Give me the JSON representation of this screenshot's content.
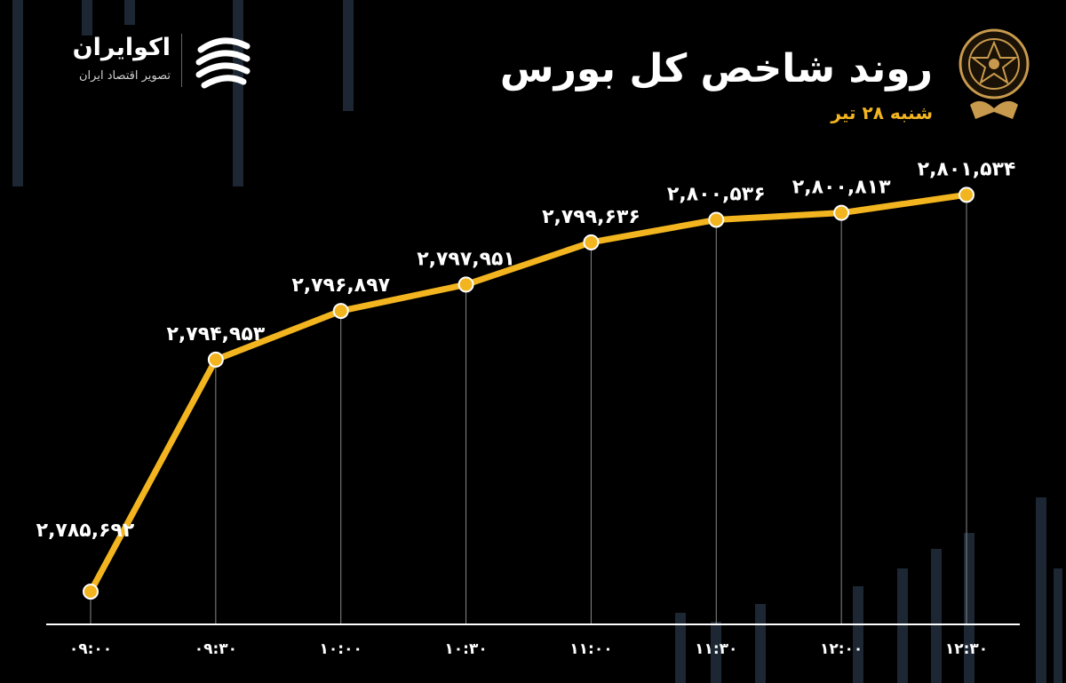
{
  "header": {
    "title": "روند شاخص کل بورس",
    "subtitle": "شنبه ۲۸ تیر"
  },
  "logo": {
    "name": "اکوایران",
    "tagline": "تصویر اقتصاد ایران"
  },
  "colors": {
    "background": "#000000",
    "line": "#f2b51f",
    "text": "#ffffff",
    "accent": "#f2b51f",
    "grid": "#888888"
  },
  "icons": {
    "emblem": "tehran-stock-exchange-emblem-icon",
    "logo_mark": "ecoiran-logo-icon"
  },
  "chart_data": {
    "type": "line",
    "x": [
      "۰۹:۰۰",
      "۰۹:۳۰",
      "۱۰:۰۰",
      "۱۰:۳۰",
      "۱۱:۰۰",
      "۱۱:۳۰",
      "۱۲:۰۰",
      "۱۲:۳۰"
    ],
    "values": [
      2785692,
      2794953,
      2796897,
      2797951,
      2799636,
      2800536,
      2800813,
      2801534
    ],
    "data_labels": [
      "۲,۷۸۵,۶۹۲",
      "۲,۷۹۴,۹۵۳",
      "۲,۷۹۶,۸۹۷",
      "۲,۷۹۷,۹۵۱",
      "۲,۷۹۹,۶۳۶",
      "۲,۸۰۰,۵۳۶",
      "۲,۸۰۰,۸۱۳",
      "۲,۸۰۱,۵۳۴"
    ],
    "ylim": [
      2778000,
      2803000
    ],
    "grid": "vertical",
    "legend": "none"
  }
}
